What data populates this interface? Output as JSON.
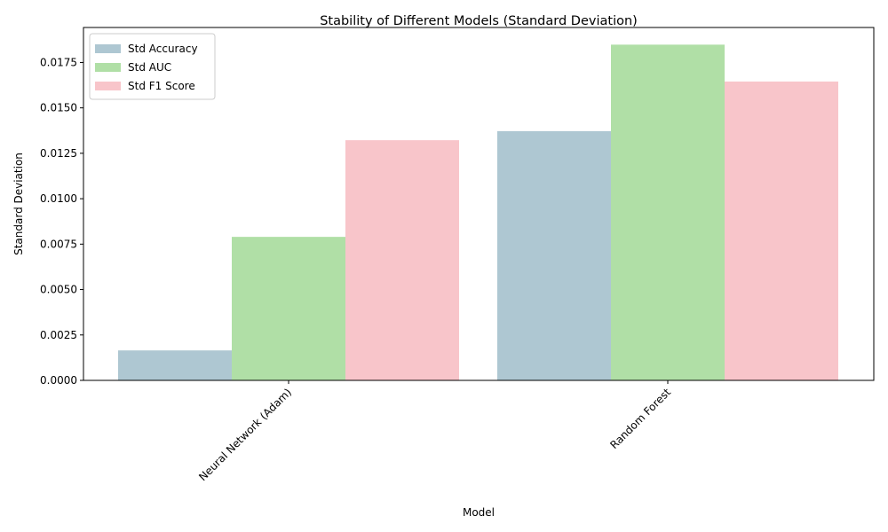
{
  "chart_data": {
    "type": "bar",
    "title": "Stability of Different Models (Standard Deviation)",
    "xlabel": "Model",
    "ylabel": "Standard Deviation",
    "categories": [
      "Neural Network (Adam)",
      "Random Forest"
    ],
    "series": [
      {
        "name": "Std Accuracy",
        "color": "#aec7d2",
        "values": [
          0.00165,
          0.01372
        ]
      },
      {
        "name": "Std AUC",
        "color": "#b0dfa6",
        "values": [
          0.0079,
          0.01848
        ]
      },
      {
        "name": "Std F1 Score",
        "color": "#f8c5ca",
        "values": [
          0.01322,
          0.01645
        ]
      }
    ],
    "ylim": [
      0,
      0.019425
    ],
    "yticks": [
      0.0,
      0.0025,
      0.005,
      0.0075,
      0.01,
      0.0125,
      0.015,
      0.0175
    ],
    "ytick_labels": [
      "0.0000",
      "0.0025",
      "0.0050",
      "0.0075",
      "0.0100",
      "0.0125",
      "0.0150",
      "0.0175"
    ],
    "xtick_rotation": 45,
    "grid": false,
    "legend": "top-left"
  }
}
